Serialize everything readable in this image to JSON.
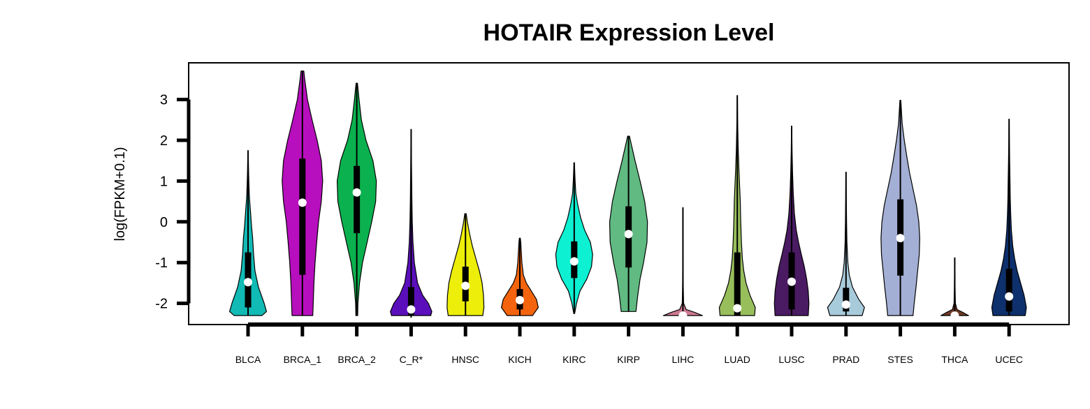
{
  "chart_data": {
    "type": "violin",
    "title": "HOTAIR Expression Level",
    "ylabel": "log(FPKM+0.1)",
    "xlabel": "",
    "ylim": [
      -2.52,
      3.9
    ],
    "yticks": [
      -2,
      -1,
      0,
      1,
      2,
      3
    ],
    "grid": false,
    "legend": "none",
    "categories": [
      "BLCA",
      "BRCA_1",
      "BRCA_2",
      "C_R*",
      "HNSC",
      "KICH",
      "KIRC",
      "KIRP",
      "LIHC",
      "LUAD",
      "LUSC",
      "PRAD",
      "STES",
      "THCA",
      "UCEC"
    ],
    "violins": [
      {
        "category": "BLCA",
        "color": "#11BAB5",
        "min": -2.3,
        "max": 1.75,
        "q1": -2.1,
        "q3": -0.75,
        "median": -1.48,
        "profile": [
          [
            -2.3,
            0.6
          ],
          [
            -2.2,
            0.8
          ],
          [
            -2.0,
            0.7
          ],
          [
            -1.6,
            0.45
          ],
          [
            -1.2,
            0.3
          ],
          [
            -0.8,
            0.24
          ],
          [
            -0.4,
            0.2
          ],
          [
            -0.1,
            0.15
          ],
          [
            0.3,
            0.1
          ],
          [
            0.6,
            0.06
          ],
          [
            0.9,
            0.04
          ],
          [
            1.2,
            0.025
          ],
          [
            1.5,
            0.015
          ],
          [
            1.75,
            0.005
          ]
        ]
      },
      {
        "category": "BRCA_1",
        "color": "#B70FBD",
        "min": -2.3,
        "max": 3.7,
        "q1": -1.3,
        "q3": 1.55,
        "median": 0.47,
        "profile": [
          [
            -2.3,
            0.45
          ],
          [
            -2.0,
            0.47
          ],
          [
            -1.5,
            0.5
          ],
          [
            -1.0,
            0.55
          ],
          [
            -0.5,
            0.62
          ],
          [
            0.0,
            0.7
          ],
          [
            0.5,
            0.82
          ],
          [
            1.0,
            0.88
          ],
          [
            1.5,
            0.82
          ],
          [
            2.0,
            0.64
          ],
          [
            2.5,
            0.42
          ],
          [
            3.0,
            0.22
          ],
          [
            3.5,
            0.1
          ],
          [
            3.7,
            0.06
          ]
        ]
      },
      {
        "category": "BRCA_2",
        "color": "#0BB14E",
        "min": -2.3,
        "max": 3.4,
        "q1": -0.28,
        "q3": 1.37,
        "median": 0.72,
        "profile": [
          [
            -2.3,
            0.04
          ],
          [
            -2.0,
            0.05
          ],
          [
            -1.5,
            0.12
          ],
          [
            -1.0,
            0.25
          ],
          [
            -0.5,
            0.45
          ],
          [
            0.0,
            0.65
          ],
          [
            0.5,
            0.82
          ],
          [
            1.0,
            0.85
          ],
          [
            1.5,
            0.7
          ],
          [
            2.0,
            0.4
          ],
          [
            2.5,
            0.2
          ],
          [
            3.0,
            0.1
          ],
          [
            3.4,
            0.03
          ]
        ]
      },
      {
        "category": "C_R*",
        "color": "#5B0FBB",
        "min": -2.35,
        "max": 2.27,
        "q1": -2.3,
        "q3": -1.6,
        "median": -2.15,
        "profile": [
          [
            -2.3,
            0.85
          ],
          [
            -2.2,
            0.9
          ],
          [
            -2.0,
            0.75
          ],
          [
            -1.8,
            0.5
          ],
          [
            -1.5,
            0.28
          ],
          [
            -1.0,
            0.14
          ],
          [
            -0.5,
            0.08
          ],
          [
            0.0,
            0.05
          ],
          [
            0.5,
            0.035
          ],
          [
            1.0,
            0.025
          ],
          [
            1.5,
            0.015
          ],
          [
            2.0,
            0.008
          ],
          [
            2.27,
            0.003
          ]
        ]
      },
      {
        "category": "HNSC",
        "color": "#EDEE0A",
        "min": -2.3,
        "max": 0.2,
        "q1": -1.95,
        "q3": -1.1,
        "median": -1.57,
        "profile": [
          [
            -2.3,
            0.75
          ],
          [
            -2.1,
            0.8
          ],
          [
            -1.8,
            0.78
          ],
          [
            -1.5,
            0.72
          ],
          [
            -1.2,
            0.6
          ],
          [
            -0.9,
            0.45
          ],
          [
            -0.6,
            0.3
          ],
          [
            -0.3,
            0.18
          ],
          [
            0.0,
            0.08
          ],
          [
            0.2,
            0.03
          ]
        ]
      },
      {
        "category": "KICH",
        "color": "#F4640E",
        "min": -2.3,
        "max": -0.4,
        "q1": -2.15,
        "q3": -1.65,
        "median": -1.92,
        "profile": [
          [
            -2.3,
            0.55
          ],
          [
            -2.1,
            0.8
          ],
          [
            -1.9,
            0.72
          ],
          [
            -1.7,
            0.5
          ],
          [
            -1.5,
            0.28
          ],
          [
            -1.3,
            0.15
          ],
          [
            -1.0,
            0.09
          ],
          [
            -0.7,
            0.06
          ],
          [
            -0.5,
            0.04
          ],
          [
            -0.4,
            0.02
          ]
        ]
      },
      {
        "category": "KIRC",
        "color": "#0EF0D2",
        "min": -2.25,
        "max": 1.45,
        "q1": -1.38,
        "q3": -0.48,
        "median": -0.97,
        "profile": [
          [
            -2.25,
            0.02
          ],
          [
            -2.0,
            0.1
          ],
          [
            -1.7,
            0.25
          ],
          [
            -1.4,
            0.55
          ],
          [
            -1.1,
            0.75
          ],
          [
            -0.8,
            0.8
          ],
          [
            -0.5,
            0.7
          ],
          [
            -0.2,
            0.45
          ],
          [
            0.1,
            0.28
          ],
          [
            0.4,
            0.16
          ],
          [
            0.7,
            0.07
          ],
          [
            1.0,
            0.04
          ],
          [
            1.45,
            0.01
          ]
        ]
      },
      {
        "category": "KIRP",
        "color": "#60BA82",
        "min": -2.2,
        "max": 2.1,
        "q1": -1.12,
        "q3": 0.38,
        "median": -0.3,
        "profile": [
          [
            -2.2,
            0.32
          ],
          [
            -1.8,
            0.4
          ],
          [
            -1.4,
            0.5
          ],
          [
            -1.0,
            0.65
          ],
          [
            -0.5,
            0.8
          ],
          [
            0.0,
            0.82
          ],
          [
            0.5,
            0.7
          ],
          [
            1.0,
            0.5
          ],
          [
            1.5,
            0.28
          ],
          [
            1.9,
            0.12
          ],
          [
            2.1,
            0.04
          ]
        ]
      },
      {
        "category": "LIHC",
        "color": "#CC7A92",
        "min": -2.3,
        "max": 0.35,
        "q1": -2.3,
        "q3": -2.3,
        "median": -2.3,
        "profile": [
          [
            -2.3,
            0.85
          ],
          [
            -2.22,
            0.5
          ],
          [
            -2.15,
            0.14
          ],
          [
            -2.0,
            0.03
          ],
          [
            -1.5,
            0.012
          ],
          [
            -1.0,
            0.008
          ],
          [
            -0.5,
            0.006
          ],
          [
            0.0,
            0.005
          ],
          [
            0.35,
            0.003
          ]
        ]
      },
      {
        "category": "LUAD",
        "color": "#98BE5C",
        "min": -2.3,
        "max": 3.1,
        "q1": -2.3,
        "q3": -0.75,
        "median": -2.12,
        "profile": [
          [
            -2.3,
            0.75
          ],
          [
            -2.1,
            0.78
          ],
          [
            -1.8,
            0.55
          ],
          [
            -1.5,
            0.38
          ],
          [
            -1.2,
            0.28
          ],
          [
            -0.9,
            0.22
          ],
          [
            -0.5,
            0.18
          ],
          [
            0.0,
            0.15
          ],
          [
            0.5,
            0.13
          ],
          [
            0.9,
            0.1
          ],
          [
            1.3,
            0.07
          ],
          [
            1.8,
            0.04
          ],
          [
            2.5,
            0.015
          ],
          [
            3.1,
            0.005
          ]
        ]
      },
      {
        "category": "LUSC",
        "color": "#4A1A63",
        "min": -2.3,
        "max": 2.35,
        "q1": -2.15,
        "q3": -0.75,
        "median": -1.47,
        "profile": [
          [
            -2.3,
            0.72
          ],
          [
            -2.0,
            0.75
          ],
          [
            -1.7,
            0.72
          ],
          [
            -1.4,
            0.65
          ],
          [
            -1.1,
            0.55
          ],
          [
            -0.8,
            0.42
          ],
          [
            -0.5,
            0.3
          ],
          [
            -0.2,
            0.2
          ],
          [
            0.2,
            0.12
          ],
          [
            0.7,
            0.07
          ],
          [
            1.2,
            0.04
          ],
          [
            1.7,
            0.02
          ],
          [
            2.35,
            0.005
          ]
        ]
      },
      {
        "category": "PRAD",
        "color": "#A8CBDB",
        "min": -2.3,
        "max": 1.22,
        "q1": -2.2,
        "q3": -1.62,
        "median": -2.03,
        "profile": [
          [
            -2.3,
            0.7
          ],
          [
            -2.1,
            0.8
          ],
          [
            -1.9,
            0.55
          ],
          [
            -1.6,
            0.28
          ],
          [
            -1.3,
            0.14
          ],
          [
            -1.0,
            0.08
          ],
          [
            -0.5,
            0.04
          ],
          [
            0.0,
            0.025
          ],
          [
            0.6,
            0.012
          ],
          [
            1.22,
            0.004
          ]
        ]
      },
      {
        "category": "STES",
        "color": "#A3AFD4",
        "min": -2.3,
        "max": 2.98,
        "q1": -1.32,
        "q3": 0.55,
        "median": -0.4,
        "profile": [
          [
            -2.3,
            0.55
          ],
          [
            -2.0,
            0.6
          ],
          [
            -1.6,
            0.68
          ],
          [
            -1.2,
            0.75
          ],
          [
            -0.8,
            0.82
          ],
          [
            -0.4,
            0.84
          ],
          [
            0.0,
            0.8
          ],
          [
            0.4,
            0.7
          ],
          [
            0.8,
            0.55
          ],
          [
            1.2,
            0.4
          ],
          [
            1.6,
            0.28
          ],
          [
            2.0,
            0.17
          ],
          [
            2.4,
            0.08
          ],
          [
            2.98,
            0.02
          ]
        ]
      },
      {
        "category": "THCA",
        "color": "#6E3A26",
        "min": -2.3,
        "max": -0.88,
        "q1": -2.3,
        "q3": -2.3,
        "median": -2.3,
        "profile": [
          [
            -2.3,
            0.6
          ],
          [
            -2.22,
            0.35
          ],
          [
            -2.15,
            0.1
          ],
          [
            -2.0,
            0.03
          ],
          [
            -1.6,
            0.015
          ],
          [
            -1.2,
            0.008
          ],
          [
            -0.88,
            0.003
          ]
        ]
      },
      {
        "category": "UCEC",
        "color": "#0E306C",
        "min": -2.3,
        "max": 2.52,
        "q1": -2.2,
        "q3": -1.15,
        "median": -1.83,
        "profile": [
          [
            -2.3,
            0.7
          ],
          [
            -2.1,
            0.75
          ],
          [
            -1.8,
            0.65
          ],
          [
            -1.5,
            0.5
          ],
          [
            -1.2,
            0.35
          ],
          [
            -0.9,
            0.24
          ],
          [
            -0.6,
            0.16
          ],
          [
            -0.2,
            0.1
          ],
          [
            0.2,
            0.07
          ],
          [
            0.6,
            0.05
          ],
          [
            1.0,
            0.04
          ],
          [
            1.5,
            0.025
          ],
          [
            2.0,
            0.012
          ],
          [
            2.52,
            0.004
          ]
        ]
      }
    ]
  }
}
